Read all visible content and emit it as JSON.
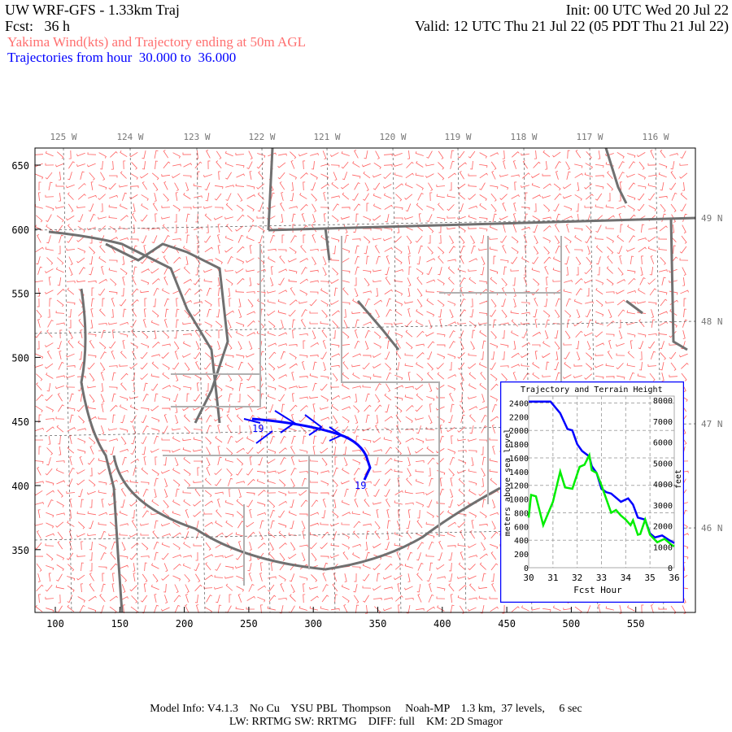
{
  "header": {
    "title": "UW WRF-GFS - 1.33km Traj",
    "init": "Init: 00 UTC Wed 20 Jul 22",
    "fcst": "Fcst:   36 h",
    "valid": "Valid: 12 UTC Thu 21 Jul 22 (05 PDT Thu 21 Jul 22)",
    "subtitle_red": "Yakima Wind(kts) and Trajectory ending at 50m AGL",
    "subtitle_blue": "Trajectories from hour  30.000 to  36.000"
  },
  "colors": {
    "wind": "#ff6060",
    "trajectory": "#0000ff",
    "terrain": "#00ee00",
    "coast": "#707070",
    "county": "#b0b0b0",
    "river": "#c080c0"
  },
  "map": {
    "top_labels": [
      "125 W",
      "124 W",
      "123 W",
      "122 W",
      "121 W",
      "120 W",
      "119 W",
      "118 W",
      "117 W",
      "116 W"
    ],
    "right_labels": [
      "49 N",
      "48 N",
      "47 N",
      "46 N"
    ],
    "left_ticks": [
      "650",
      "600",
      "550",
      "500",
      "450",
      "400",
      "350"
    ],
    "bottom_ticks": [
      "100",
      "150",
      "200",
      "250",
      "300",
      "350",
      "400",
      "450",
      "500",
      "550"
    ],
    "trajectory_labels": [
      "19",
      "19"
    ]
  },
  "chart_data": {
    "type": "line",
    "title": "Trajectory and Terrain Height",
    "xlabel": "Fcst Hour",
    "ylabel": "meters above sea level",
    "ylabel_right": "feet",
    "xlim": [
      30,
      36
    ],
    "ylim": [
      0,
      2500
    ],
    "x_ticks": [
      "30",
      "31",
      "32",
      "33",
      "34",
      "35",
      "36"
    ],
    "y_ticks": [
      "0",
      "200",
      "400",
      "600",
      "800",
      "1000",
      "1200",
      "1400",
      "1600",
      "1800",
      "2000",
      "2200",
      "2400"
    ],
    "y_right_ticks": [
      "0",
      "1000",
      "2000",
      "3000",
      "4000",
      "5000",
      "6000",
      "7000",
      "8000"
    ],
    "grid": true,
    "series": [
      {
        "color": "#0000ff",
        "points": [
          [
            30,
            2420
          ],
          [
            30.9,
            2420
          ],
          [
            31.3,
            2250
          ],
          [
            31.6,
            2020
          ],
          [
            31.8,
            2000
          ],
          [
            32.0,
            1800
          ],
          [
            32.2,
            1700
          ],
          [
            32.5,
            1620
          ],
          [
            32.6,
            1480
          ],
          [
            32.8,
            1380
          ],
          [
            33.0,
            1150
          ],
          [
            33.2,
            1100
          ],
          [
            33.4,
            1080
          ],
          [
            33.8,
            960
          ],
          [
            34.1,
            1010
          ],
          [
            34.3,
            920
          ],
          [
            34.5,
            730
          ],
          [
            34.8,
            700
          ],
          [
            35.0,
            500
          ],
          [
            35.2,
            440
          ],
          [
            35.5,
            470
          ],
          [
            35.8,
            400
          ],
          [
            36,
            360
          ]
        ]
      },
      {
        "color": "#00ee00",
        "points": [
          [
            30,
            730
          ],
          [
            30.1,
            1060
          ],
          [
            30.3,
            1040
          ],
          [
            30.6,
            620
          ],
          [
            31.0,
            960
          ],
          [
            31.3,
            1400
          ],
          [
            31.5,
            1170
          ],
          [
            31.8,
            1150
          ],
          [
            32.1,
            1470
          ],
          [
            32.3,
            1500
          ],
          [
            32.5,
            1640
          ],
          [
            32.6,
            1420
          ],
          [
            32.8,
            1380
          ],
          [
            33.0,
            1200
          ],
          [
            33.2,
            1000
          ],
          [
            33.4,
            800
          ],
          [
            33.6,
            840
          ],
          [
            33.8,
            760
          ],
          [
            34.0,
            700
          ],
          [
            34.2,
            620
          ],
          [
            34.3,
            690
          ],
          [
            34.5,
            480
          ],
          [
            34.6,
            490
          ],
          [
            34.8,
            700
          ],
          [
            35.0,
            480
          ],
          [
            35.3,
            370
          ],
          [
            35.6,
            420
          ],
          [
            35.9,
            330
          ],
          [
            36,
            310
          ]
        ]
      }
    ]
  },
  "footer": {
    "line1": "Model Info: V4.1.3    No Cu    YSU PBL  Thompson     Noah-MP    1.3 km,  37 levels,     6 sec",
    "line2": "LW: RRTMG SW: RRTMG    DIFF: full    KM: 2D Smagor"
  }
}
